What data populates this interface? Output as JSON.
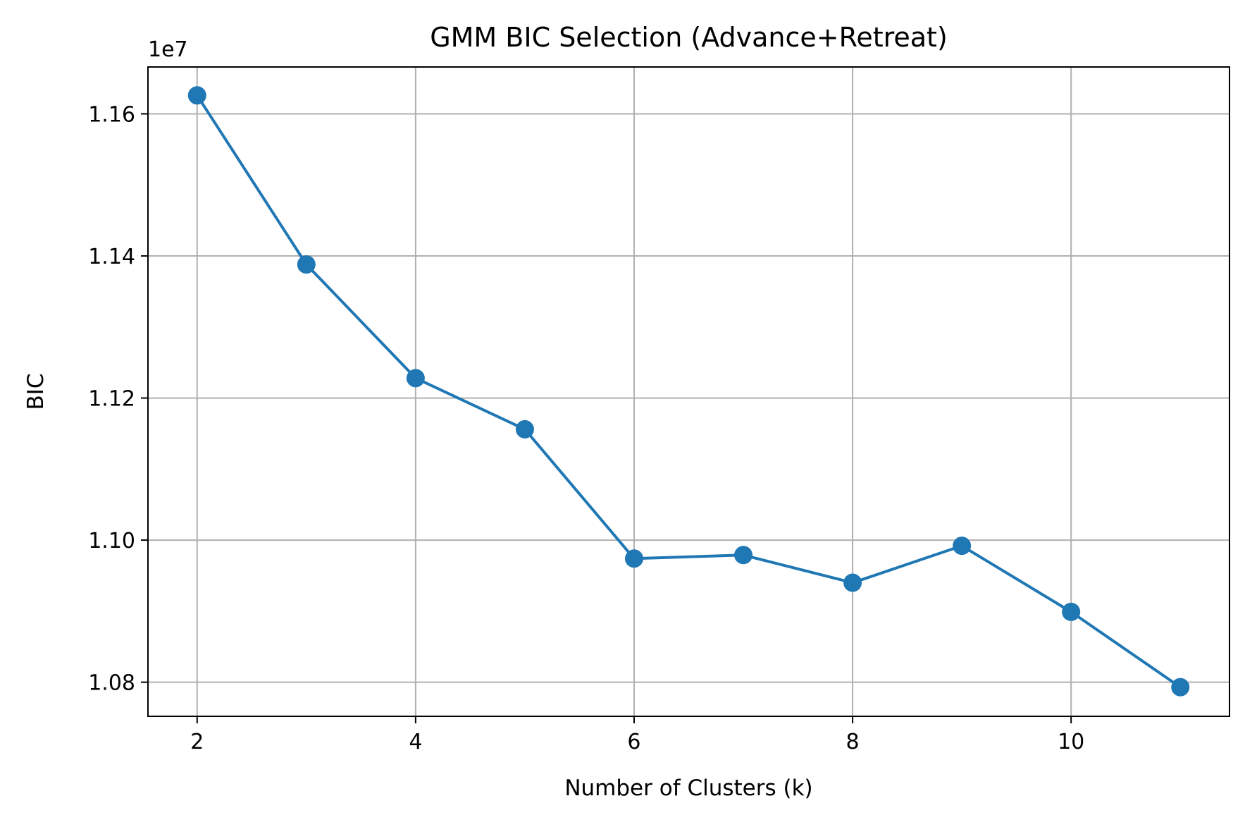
{
  "chart_data": {
    "type": "line",
    "title": "GMM BIC Selection (Advance+Retreat)",
    "xlabel": "Number of Clusters (k)",
    "ylabel": "BIC",
    "y_offset_label": "1e7",
    "x": [
      2,
      3,
      4,
      5,
      6,
      7,
      8,
      9,
      10,
      11
    ],
    "series": [
      {
        "values": [
          11626000,
          11388000,
          11228000,
          11156000,
          10974000,
          10979000,
          10940000,
          10992000,
          10899000,
          10793000
        ]
      }
    ],
    "xlim": [
      1.55,
      11.45
    ],
    "ylim": [
      10752000,
      11666000
    ],
    "xticks": [
      2,
      4,
      6,
      8,
      10
    ],
    "xtick_labels": [
      "2",
      "4",
      "6",
      "8",
      "10"
    ],
    "yticks": [
      10800000,
      11000000,
      11200000,
      11400000,
      11600000
    ],
    "ytick_labels": [
      "1.08",
      "1.10",
      "1.12",
      "1.14",
      "1.16"
    ],
    "grid": true,
    "line_color": "#1f77b4",
    "grid_color": "#b0b0b0",
    "marker": "circle"
  }
}
